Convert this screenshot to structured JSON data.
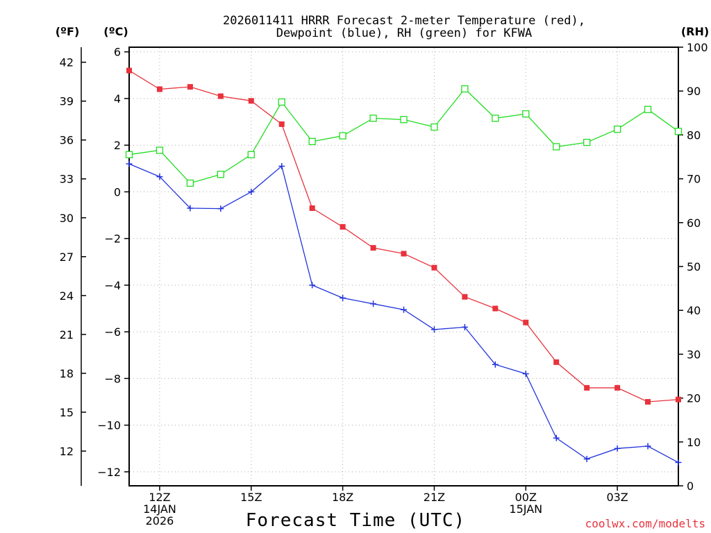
{
  "chart_data": {
    "type": "line",
    "title_line1": "2026011411 HRRR Forecast 2-meter Temperature (red),",
    "title_line2": "Dewpoint (blue), RH (green) for KFWA",
    "xlabel": "Forecast Time (UTC)",
    "credit": "coolwx.com/modelts",
    "units": {
      "f": "(ºF)",
      "c": "(ºC)",
      "rh": "(RH)"
    },
    "x_hours": [
      11,
      12,
      13,
      14,
      15,
      16,
      17,
      18,
      19,
      20,
      21,
      22,
      23,
      24,
      25,
      26,
      27,
      28,
      29
    ],
    "x_range": [
      11,
      29
    ],
    "x_ticks": [
      {
        "hour": 12,
        "lines": [
          "12Z",
          "14JAN",
          "2026"
        ]
      },
      {
        "hour": 15,
        "lines": [
          "15Z"
        ]
      },
      {
        "hour": 18,
        "lines": [
          "18Z"
        ]
      },
      {
        "hour": 21,
        "lines": [
          "21Z"
        ]
      },
      {
        "hour": 24,
        "lines": [
          "00Z",
          "15JAN"
        ]
      },
      {
        "hour": 27,
        "lines": [
          "03Z"
        ]
      }
    ],
    "y_c_range": [
      -12.6,
      6.2
    ],
    "y_c_ticks": [
      6,
      4,
      2,
      0,
      -2,
      -4,
      -6,
      -8,
      -10,
      -12
    ],
    "y_c_tick_labels": [
      "6",
      "4",
      "2",
      "0",
      "−2",
      "−4",
      "−6",
      "−8",
      "−10",
      "−12"
    ],
    "y_f_ticks": [
      42,
      39,
      36,
      33,
      30,
      27,
      24,
      21,
      18,
      15,
      12
    ],
    "y_rh_range": [
      0,
      100
    ],
    "y_rh_ticks": [
      100,
      90,
      80,
      70,
      60,
      50,
      40,
      30,
      20,
      10,
      0
    ],
    "series": [
      {
        "name": "Temperature",
        "unit": "C",
        "color": "#e8323c",
        "marker": "filled-square",
        "values": [
          5.2,
          4.4,
          4.5,
          4.1,
          3.9,
          2.9,
          -0.7,
          -1.5,
          -2.4,
          -2.65,
          -3.25,
          -4.5,
          -5.0,
          -5.6,
          -7.3,
          -8.4,
          -8.4,
          -9.0,
          -8.9
        ]
      },
      {
        "name": "Dewpoint",
        "unit": "C",
        "color": "#2233dd",
        "marker": "plus",
        "values": [
          1.2,
          0.65,
          -0.7,
          -0.72,
          0.0,
          1.1,
          -4.0,
          -4.55,
          -4.8,
          -5.05,
          -5.9,
          -5.8,
          -7.4,
          -7.8,
          -10.55,
          -11.45,
          -11.0,
          -10.9,
          -11.6
        ]
      },
      {
        "name": "RH",
        "unit": "%",
        "color": "#22dd22",
        "marker": "open-square",
        "values": [
          75.5,
          76.5,
          69.0,
          71.0,
          75.5,
          87.5,
          78.5,
          79.8,
          83.8,
          83.5,
          81.8,
          90.5,
          83.8,
          84.8,
          77.3,
          78.3,
          81.3,
          85.8,
          80.8
        ]
      }
    ]
  }
}
